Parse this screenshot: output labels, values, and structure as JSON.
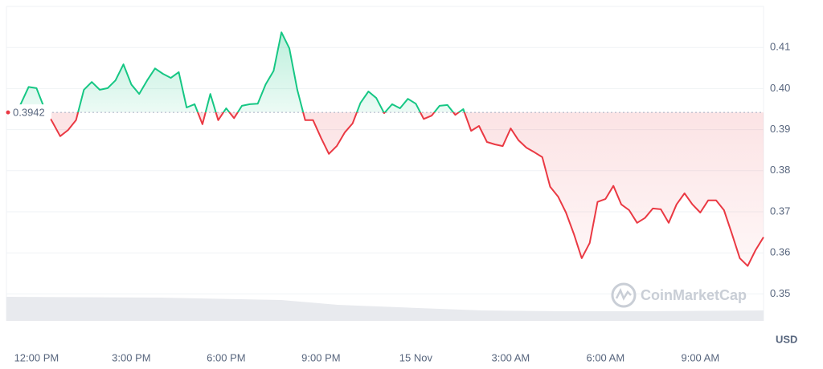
{
  "chart_data": {
    "type": "line",
    "x": [
      11.25,
      11.5,
      11.75,
      12,
      12.25,
      12.5,
      12.75,
      13,
      13.25,
      13.5,
      13.75,
      14,
      14.25,
      14.5,
      14.75,
      15,
      15.25,
      15.5,
      15.75,
      16,
      16.25,
      16.5,
      16.75,
      17,
      17.25,
      17.5,
      17.75,
      18,
      18.25,
      18.5,
      18.75,
      19,
      19.25,
      19.5,
      19.75,
      20,
      20.25,
      20.5,
      20.75,
      21,
      21.25,
      21.5,
      21.75,
      22,
      22.25,
      22.5,
      22.75,
      23,
      23.25,
      23.5,
      23.75,
      24,
      24.25,
      24.5,
      24.75,
      25,
      25.25,
      25.5,
      25.75,
      26,
      26.25,
      26.5,
      26.75,
      27,
      27.25,
      27.5,
      27.75,
      28,
      28.25,
      28.5,
      28.75,
      29,
      29.25,
      29.5,
      29.75,
      30,
      30.25,
      30.5,
      30.75,
      31,
      31.25,
      31.5,
      31.75,
      32,
      32.25,
      32.5,
      32.75,
      33,
      33.25,
      33.5,
      33.75,
      34,
      34.25,
      34.5,
      34.75,
      35
    ],
    "series": [
      {
        "values": [
          0.3942,
          0.3962,
          0.4004,
          0.4001,
          0.3952,
          0.3919,
          0.3884,
          0.3899,
          0.3923,
          0.3997,
          0.4016,
          0.3997,
          0.4001,
          0.402,
          0.4059,
          0.401,
          0.3987,
          0.402,
          0.4049,
          0.4036,
          0.4026,
          0.404,
          0.3954,
          0.3962,
          0.3913,
          0.3987,
          0.3923,
          0.3952,
          0.3928,
          0.3958,
          0.3962,
          0.3963,
          0.401,
          0.4043,
          0.4137,
          0.4098,
          0.3997,
          0.3923,
          0.3923,
          0.388,
          0.3841,
          0.386,
          0.3893,
          0.3915,
          0.3965,
          0.3993,
          0.3977,
          0.394,
          0.3962,
          0.3952,
          0.3975,
          0.3963,
          0.3926,
          0.3934,
          0.3958,
          0.396,
          0.3936,
          0.395,
          0.3897,
          0.3909,
          0.387,
          0.3864,
          0.386,
          0.3903,
          0.3874,
          0.3856,
          0.3845,
          0.3833,
          0.3761,
          0.3737,
          0.3698,
          0.3646,
          0.3587,
          0.3624,
          0.3724,
          0.3731,
          0.3763,
          0.3718,
          0.3704,
          0.3673,
          0.3685,
          0.3708,
          0.3706,
          0.3673,
          0.3718,
          0.3745,
          0.3718,
          0.3698,
          0.3728,
          0.3728,
          0.3704,
          0.3646,
          0.3587,
          0.3568,
          0.3607,
          0.3638
        ]
      }
    ],
    "baseline": 0.3942,
    "up_color": "#16c784",
    "down_color": "#ea3943",
    "xlim": [
      11.1,
      35
    ],
    "xticks": [
      {
        "value": 12,
        "label": "12:00 PM"
      },
      {
        "value": 15,
        "label": "3:00 PM"
      },
      {
        "value": 18,
        "label": "6:00 PM"
      },
      {
        "value": 21,
        "label": "9:00 PM"
      },
      {
        "value": 24,
        "label": "15 Nov"
      },
      {
        "value": 27,
        "label": "3:00 AM"
      },
      {
        "value": 30,
        "label": "6:00 AM"
      },
      {
        "value": 33,
        "label": "9:00 AM"
      }
    ],
    "ylim": [
      0.345,
      0.42
    ],
    "yticks": [
      0.35,
      0.36,
      0.37,
      0.38,
      0.39,
      0.4,
      0.41
    ],
    "ytick_labels": [
      "0.35",
      "0.36",
      "0.37",
      "0.38",
      "0.39",
      "0.40",
      "0.41"
    ],
    "y_axis_label": "USD",
    "watermark": "CoinMarketCap",
    "grid": true
  }
}
